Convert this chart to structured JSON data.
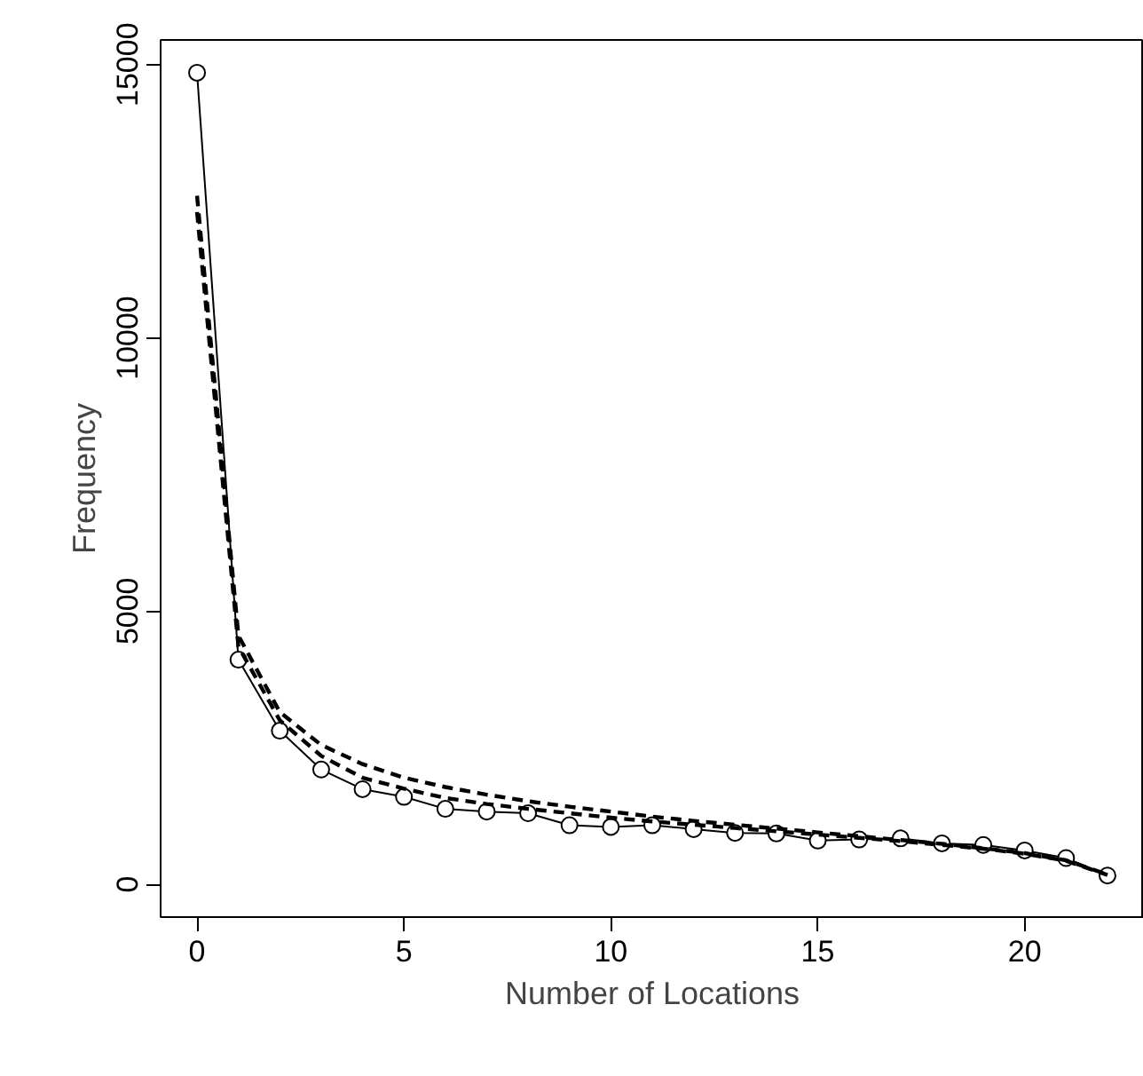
{
  "chart_data": {
    "type": "line",
    "xlabel": "Number of Locations",
    "ylabel": "Frequency",
    "x": [
      0,
      1,
      2,
      3,
      4,
      5,
      6,
      7,
      8,
      9,
      10,
      11,
      12,
      13,
      14,
      15,
      16,
      17,
      18,
      19,
      20,
      21,
      22
    ],
    "series": [
      {
        "color": "#000000",
        "marker": "circle",
        "line_style": "solid",
        "values": [
          14850,
          4110,
          2810,
          2100,
          1740,
          1600,
          1380,
          1330,
          1300,
          1080,
          1050,
          1080,
          1010,
          940,
          930,
          800,
          820,
          840,
          750,
          720,
          620,
          480,
          160
        ]
      },
      {
        "color": "#000000",
        "marker": "none",
        "line_style": "dashed",
        "values": [
          12600,
          4550,
          3150,
          2550,
          2200,
          1950,
          1780,
          1640,
          1520,
          1420,
          1330,
          1240,
          1160,
          1090,
          1020,
          950,
          880,
          810,
          740,
          660,
          570,
          440,
          180
        ]
      },
      {
        "color": "#000000",
        "marker": "none",
        "line_style": "dashed",
        "values": [
          12300,
          4350,
          3000,
          2350,
          1950,
          1750,
          1580,
          1470,
          1380,
          1300,
          1220,
          1150,
          1090,
          1030,
          970,
          910,
          850,
          790,
          720,
          650,
          560,
          430,
          170
        ]
      }
    ],
    "xlim": [
      -0.88,
      22.88
    ],
    "ylim": [
      -600,
      15450
    ],
    "xticks": [
      0,
      5,
      10,
      15,
      20
    ],
    "yticks": [
      0,
      5000,
      10000,
      15000
    ],
    "grid": false
  }
}
